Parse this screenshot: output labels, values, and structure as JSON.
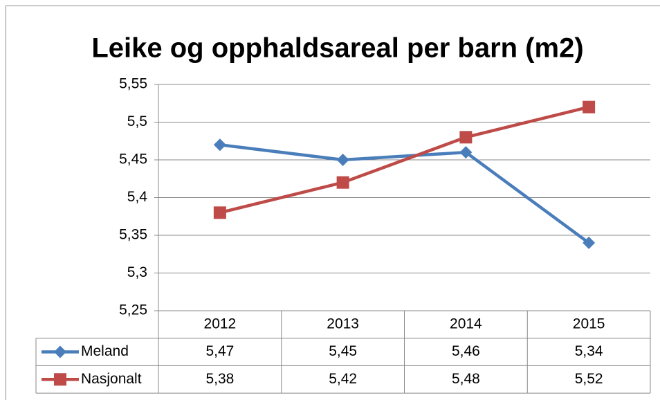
{
  "chart_data": {
    "type": "line",
    "title": "Leike og opphaldsareal per barn (m2)",
    "categories": [
      "2012",
      "2013",
      "2014",
      "2015"
    ],
    "series": [
      {
        "name": "Meland",
        "color": "#4a7ebb",
        "marker": "diamond",
        "values": [
          5.47,
          5.45,
          5.46,
          5.34
        ],
        "value_labels": [
          "5,47",
          "5,45",
          "5,46",
          "5,34"
        ]
      },
      {
        "name": "Nasjonalt",
        "color": "#be4b48",
        "marker": "square",
        "values": [
          5.38,
          5.42,
          5.48,
          5.52
        ],
        "value_labels": [
          "5,38",
          "5,42",
          "5,48",
          "5,52"
        ]
      }
    ],
    "ylim": [
      5.25,
      5.55
    ],
    "yticks": [
      {
        "value": 5.25,
        "label": "5,25"
      },
      {
        "value": 5.3,
        "label": "5,3"
      },
      {
        "value": 5.35,
        "label": "5,35"
      },
      {
        "value": 5.4,
        "label": "5,4"
      },
      {
        "value": 5.45,
        "label": "5,45"
      },
      {
        "value": 5.5,
        "label": "5,5"
      },
      {
        "value": 5.55,
        "label": "5,55"
      }
    ],
    "grid": true,
    "data_table": true
  }
}
